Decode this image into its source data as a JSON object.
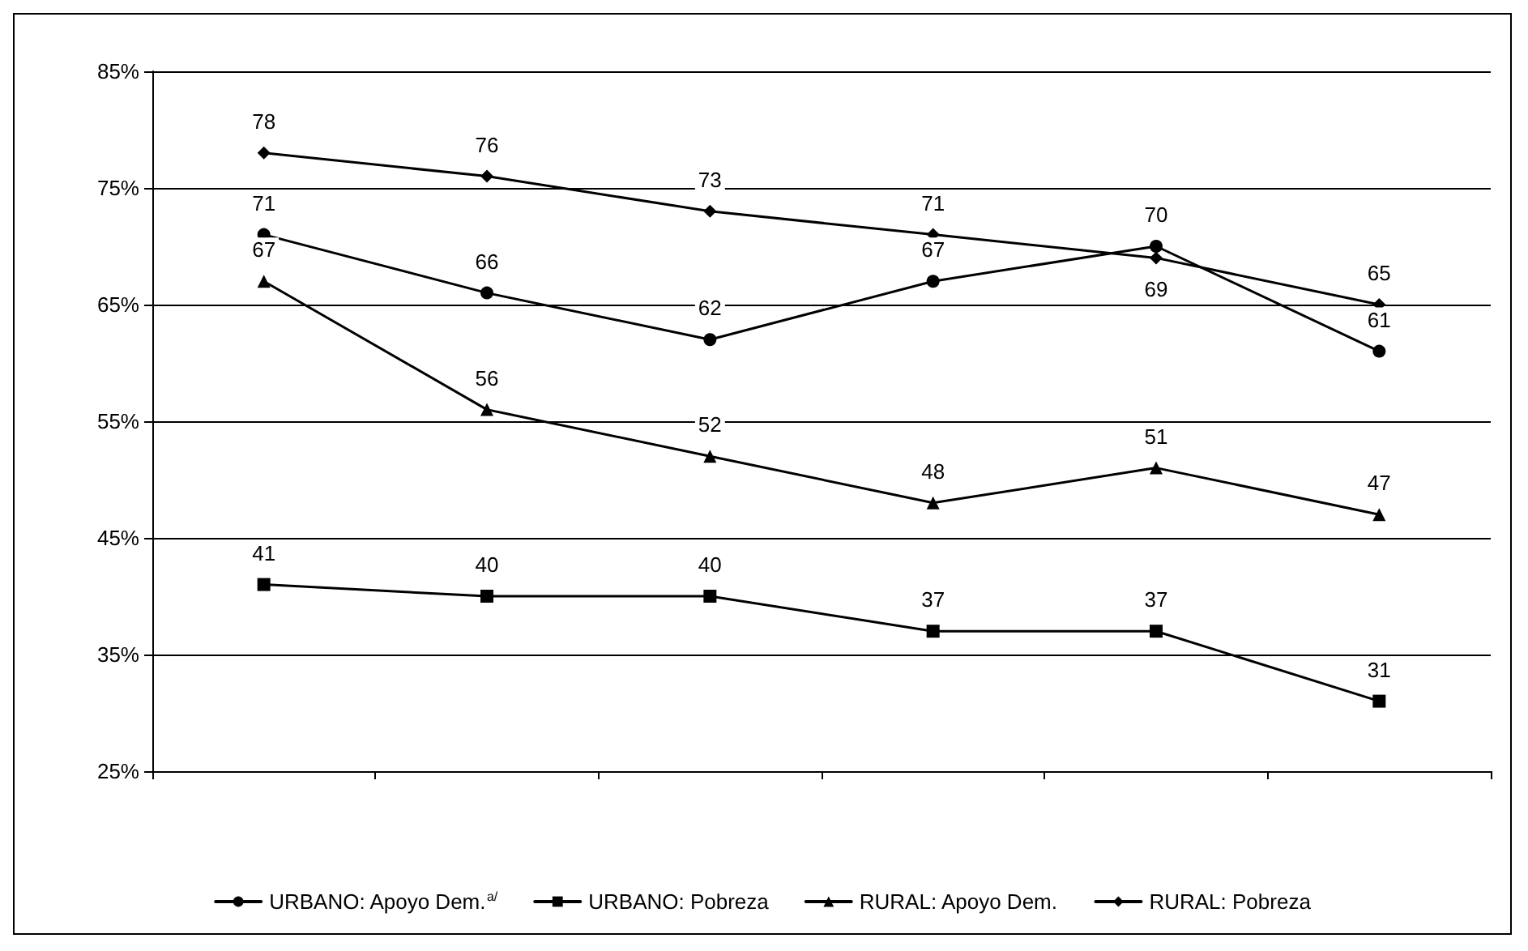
{
  "chart_data": {
    "type": "line",
    "categories": [
      null,
      null,
      null,
      null,
      null,
      null
    ],
    "series": [
      {
        "name": "URBANO: Apoyo Dem.$^{a/}$",
        "color": "#000000",
        "marker": "circle",
        "values": [
          71,
          66,
          62,
          67,
          70,
          61
        ]
      },
      {
        "name": "URBANO: Pobreza",
        "color": "#000000",
        "marker": "square",
        "values": [
          41,
          40,
          40,
          37,
          37,
          31
        ]
      },
      {
        "name": "RURAL: Apoyo Dem.",
        "color": "#000000",
        "marker": "triangle",
        "values": [
          67,
          56,
          52,
          48,
          51,
          47
        ]
      },
      {
        "name": "RURAL: Pobreza",
        "color": "#000000",
        "marker": "diamond",
        "values": [
          78,
          76,
          73,
          71,
          69,
          65
        ]
      }
    ],
    "ylim": [
      25,
      85
    ],
    "yticks": [
      {
        "value": 25,
        "label": "25%"
      },
      {
        "value": 35,
        "label": "35%"
      },
      {
        "value": 45,
        "label": "45%"
      },
      {
        "value": 55,
        "label": "55%"
      },
      {
        "value": 65,
        "label": "65%"
      },
      {
        "value": 75,
        "label": "75%"
      },
      {
        "value": 85,
        "label": "85%"
      }
    ],
    "grid": "y",
    "legend": "bottom",
    "tick_labels": "y",
    "data_labels": true,
    "line_style": "solid"
  }
}
